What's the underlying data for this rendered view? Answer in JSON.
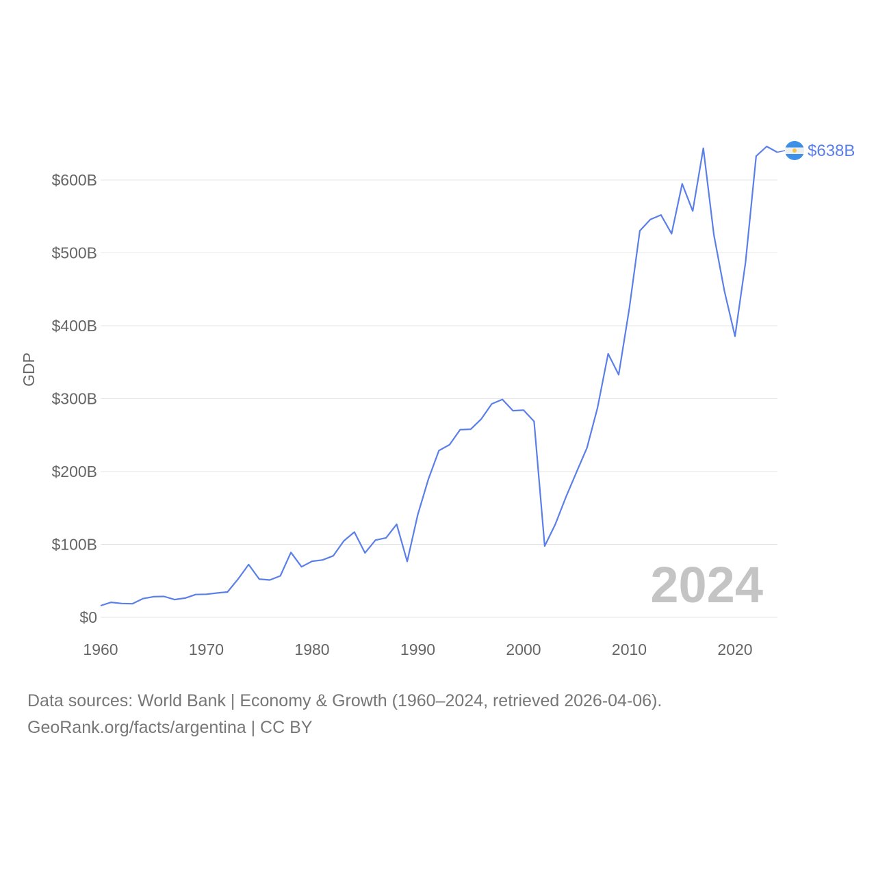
{
  "chart_data": {
    "type": "line",
    "title": "",
    "xlabel": "",
    "ylabel": "GDP",
    "xlim": [
      1960,
      2024
    ],
    "ylim": [
      0,
      600
    ],
    "y_unit": "billion USD",
    "grid": true,
    "x_ticks": [
      "1960",
      "1970",
      "1980",
      "1990",
      "2000",
      "2010",
      "2020"
    ],
    "y_ticks": [
      {
        "value": 0,
        "label": "$0"
      },
      {
        "value": 100,
        "label": "$100B"
      },
      {
        "value": 200,
        "label": "$200B"
      },
      {
        "value": 300,
        "label": "$300B"
      },
      {
        "value": 400,
        "label": "$400B"
      },
      {
        "value": 500,
        "label": "$500B"
      },
      {
        "value": 600,
        "label": "$600B"
      }
    ],
    "series": [
      {
        "name": "Argentina",
        "color": "#5b7fe8",
        "end_label": "$638B",
        "x": [
          1960,
          1961,
          1962,
          1963,
          1964,
          1965,
          1966,
          1967,
          1968,
          1969,
          1970,
          1971,
          1972,
          1973,
          1974,
          1975,
          1976,
          1977,
          1978,
          1979,
          1980,
          1981,
          1982,
          1983,
          1984,
          1985,
          1986,
          1987,
          1988,
          1989,
          1990,
          1991,
          1992,
          1993,
          1994,
          1995,
          1996,
          1997,
          1998,
          1999,
          2000,
          2001,
          2002,
          2003,
          2004,
          2005,
          2006,
          2007,
          2008,
          2009,
          2010,
          2011,
          2012,
          2013,
          2014,
          2015,
          2016,
          2017,
          2018,
          2019,
          2020,
          2021,
          2022,
          2023,
          2024
        ],
        "values": [
          16,
          20.6,
          19,
          18.6,
          25.6,
          28.3,
          28.6,
          24.3,
          26.4,
          31.3,
          31.6,
          33.3,
          34.7,
          52.5,
          72.4,
          52.4,
          51.2,
          56.8,
          89,
          69.3,
          76.9,
          78.7,
          84.3,
          104.7,
          117,
          88.4,
          105.9,
          109,
          127.6,
          76.6,
          141,
          189.7,
          228.8,
          236.7,
          257.4,
          258,
          272,
          292.9,
          299,
          283.5,
          284.2,
          268.7,
          97.7,
          127.6,
          164.7,
          199,
          232.6,
          287.5,
          361.6,
          332.9,
          423.6,
          530.2,
          545.9,
          552,
          526.3,
          594.7,
          557.5,
          643.6,
          524.8,
          447.8,
          385.5,
          487.2,
          632.8,
          646,
          638
        ]
      }
    ],
    "watermark_year": "2024"
  },
  "footer": {
    "line1": "Data sources: World Bank | Economy & Growth (1960–2024, retrieved 2026-04-06).",
    "line2": "GeoRank.org/facts/argentina | CC BY"
  }
}
